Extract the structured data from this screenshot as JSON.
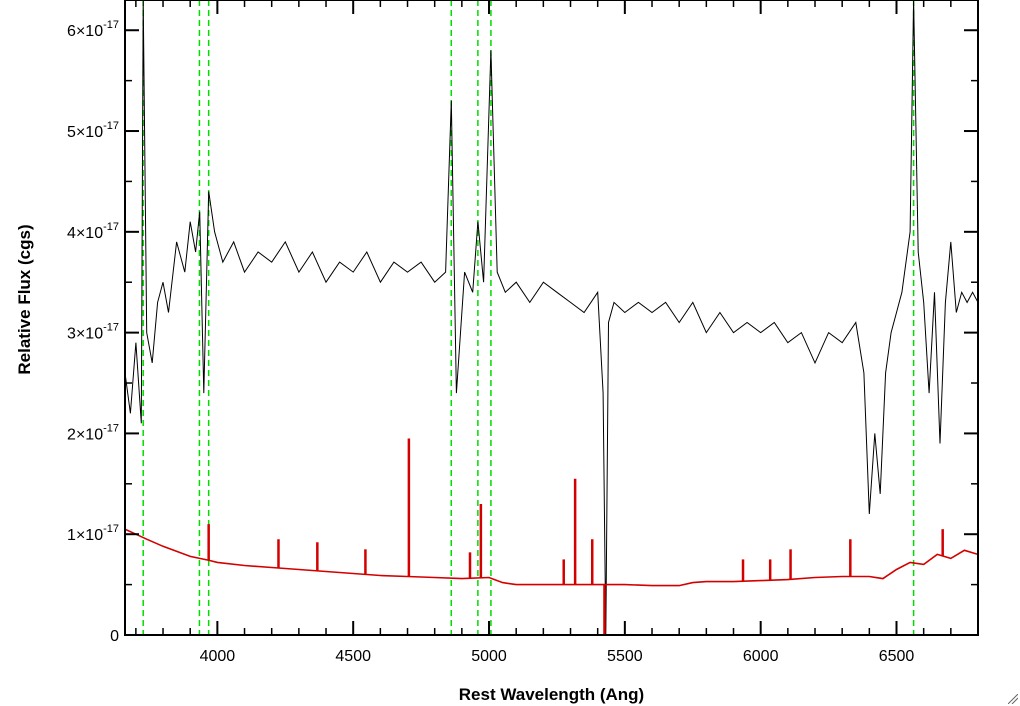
{
  "chart_data": {
    "type": "line",
    "xlabel": "Rest Wavelength (Ang)",
    "ylabel": "Relative Flux (cgs)",
    "xlim": [
      3660,
      6800
    ],
    "ylim": [
      0,
      6.3e-17
    ],
    "x_ticks": [
      4000,
      4500,
      5000,
      5500,
      6000,
      6500
    ],
    "x_tick_labels": [
      "4000",
      "4500",
      "5000",
      "5500",
      "6000",
      "6500"
    ],
    "y_ticks": [
      0,
      1e-17,
      2e-17,
      3e-17,
      4e-17,
      5e-17,
      6e-17
    ],
    "y_tick_labels": [
      {
        "mantissa": "0",
        "exponent": ""
      },
      {
        "mantissa": "1×10",
        "exponent": "-17"
      },
      {
        "mantissa": "2×10",
        "exponent": "-17"
      },
      {
        "mantissa": "3×10",
        "exponent": "-17"
      },
      {
        "mantissa": "4×10",
        "exponent": "-17"
      },
      {
        "mantissa": "5×10",
        "exponent": "-17"
      },
      {
        "mantissa": "6×10",
        "exponent": "-17"
      }
    ],
    "grid": false,
    "legend": "none",
    "series": [
      {
        "color": "#000000",
        "x": [
          3660,
          3680,
          3700,
          3720,
          3727,
          3740,
          3760,
          3780,
          3800,
          3820,
          3850,
          3880,
          3900,
          3920,
          3935,
          3950,
          3968,
          3990,
          4020,
          4060,
          4100,
          4150,
          4200,
          4250,
          4300,
          4350,
          4400,
          4450,
          4500,
          4550,
          4600,
          4650,
          4700,
          4750,
          4800,
          4840,
          4861,
          4880,
          4910,
          4940,
          4959,
          4980,
          5007,
          5030,
          5060,
          5100,
          5150,
          5200,
          5250,
          5300,
          5350,
          5400,
          5420,
          5430,
          5440,
          5460,
          5500,
          5550,
          5600,
          5650,
          5700,
          5750,
          5800,
          5850,
          5900,
          5950,
          6000,
          6050,
          6100,
          6150,
          6200,
          6250,
          6300,
          6350,
          6380,
          6400,
          6420,
          6440,
          6460,
          6480,
          6500,
          6520,
          6550,
          6563,
          6580,
          6600,
          6620,
          6640,
          6660,
          6680,
          6700,
          6720,
          6740,
          6760,
          6780,
          6800
        ],
        "y": [
          2.6e-17,
          2.2e-17,
          2.9e-17,
          2.1e-17,
          6.3e-17,
          3e-17,
          2.7e-17,
          3.3e-17,
          3.5e-17,
          3.2e-17,
          3.9e-17,
          3.6e-17,
          4.1e-17,
          3.8e-17,
          4.2e-17,
          2.4e-17,
          4.4e-17,
          4e-17,
          3.7e-17,
          3.9e-17,
          3.6e-17,
          3.8e-17,
          3.7e-17,
          3.9e-17,
          3.6e-17,
          3.8e-17,
          3.5e-17,
          3.7e-17,
          3.6e-17,
          3.8e-17,
          3.5e-17,
          3.7e-17,
          3.6e-17,
          3.7e-17,
          3.5e-17,
          3.6e-17,
          5.3e-17,
          2.4e-17,
          3.6e-17,
          3.4e-17,
          4.1e-17,
          3.5e-17,
          5.8e-17,
          3.6e-17,
          3.4e-17,
          3.5e-17,
          3.3e-17,
          3.5e-17,
          3.4e-17,
          3.3e-17,
          3.2e-17,
          3.4e-17,
          2.4e-17,
          0.0,
          3.1e-17,
          3.3e-17,
          3.2e-17,
          3.3e-17,
          3.2e-17,
          3.3e-17,
          3.1e-17,
          3.3e-17,
          3e-17,
          3.2e-17,
          3e-17,
          3.1e-17,
          3e-17,
          3.1e-17,
          2.9e-17,
          3e-17,
          2.7e-17,
          3e-17,
          2.9e-17,
          3.1e-17,
          2.6e-17,
          1.2e-17,
          2e-17,
          1.4e-17,
          2.6e-17,
          3e-17,
          3.2e-17,
          3.4e-17,
          4e-17,
          6.3e-17,
          3.8e-17,
          3.3e-17,
          2.4e-17,
          3.4e-17,
          1.9e-17,
          3.3e-17,
          3.9e-17,
          3.2e-17,
          3.4e-17,
          3.3e-17,
          3.4e-17,
          3.3e-17
        ]
      },
      {
        "color": "#d40000",
        "x": [
          3660,
          3700,
          3740,
          3800,
          3900,
          3970,
          4000,
          4100,
          4200,
          4300,
          4400,
          4500,
          4600,
          4700,
          4800,
          4900,
          5000,
          5050,
          5100,
          5200,
          5300,
          5400,
          5500,
          5600,
          5700,
          5750,
          5800,
          5900,
          6000,
          6100,
          6200,
          6300,
          6400,
          6450,
          6500,
          6550,
          6600,
          6650,
          6700,
          6750,
          6800
        ],
        "y": [
          1.05e-17,
          1e-17,
          9.5e-18,
          8.8e-18,
          7.8e-18,
          7.4e-18,
          7.2e-18,
          6.9e-18,
          6.7e-18,
          6.5e-18,
          6.3e-18,
          6.1e-18,
          5.9e-18,
          5.8e-18,
          5.7e-18,
          5.6e-18,
          5.7e-18,
          5.2e-18,
          5e-18,
          5e-18,
          5e-18,
          5e-18,
          5e-18,
          4.9e-18,
          4.9e-18,
          5.2e-18,
          5.3e-18,
          5.3e-18,
          5.4e-18,
          5.5e-18,
          5.7e-18,
          5.8e-18,
          5.8e-18,
          5.6e-18,
          6.5e-18,
          7.2e-18,
          7e-18,
          8e-18,
          7.6e-18,
          8.4e-18,
          8e-18
        ],
        "spikes": [
          {
            "x": 3968,
            "y": 1.1e-17
          },
          {
            "x": 4225,
            "y": 9.5e-18
          },
          {
            "x": 4368,
            "y": 9.2e-18
          },
          {
            "x": 4545,
            "y": 8.5e-18
          },
          {
            "x": 4705,
            "y": 1.95e-17
          },
          {
            "x": 4930,
            "y": 8.2e-18
          },
          {
            "x": 4970,
            "y": 1.3e-17
          },
          {
            "x": 5275,
            "y": 7.5e-18
          },
          {
            "x": 5317,
            "y": 1.55e-17
          },
          {
            "x": 5380,
            "y": 9.5e-18
          },
          {
            "x": 5425,
            "y": 0.0
          },
          {
            "x": 5935,
            "y": 7.5e-18
          },
          {
            "x": 6035,
            "y": 7.5e-18
          },
          {
            "x": 6110,
            "y": 8.5e-18
          },
          {
            "x": 6330,
            "y": 9.5e-18
          },
          {
            "x": 6670,
            "y": 1.05e-17
          }
        ]
      }
    ],
    "vlines": [
      {
        "x": 3727,
        "color": "#00dd00",
        "style": "dashed"
      },
      {
        "x": 3934,
        "color": "#00dd00",
        "style": "dashed"
      },
      {
        "x": 3968,
        "color": "#00dd00",
        "style": "dashed"
      },
      {
        "x": 4861,
        "color": "#00dd00",
        "style": "dashed"
      },
      {
        "x": 4959,
        "color": "#00dd00",
        "style": "dashed"
      },
      {
        "x": 5007,
        "color": "#00dd00",
        "style": "dashed"
      },
      {
        "x": 6563,
        "color": "#00dd00",
        "style": "dashed"
      }
    ]
  }
}
